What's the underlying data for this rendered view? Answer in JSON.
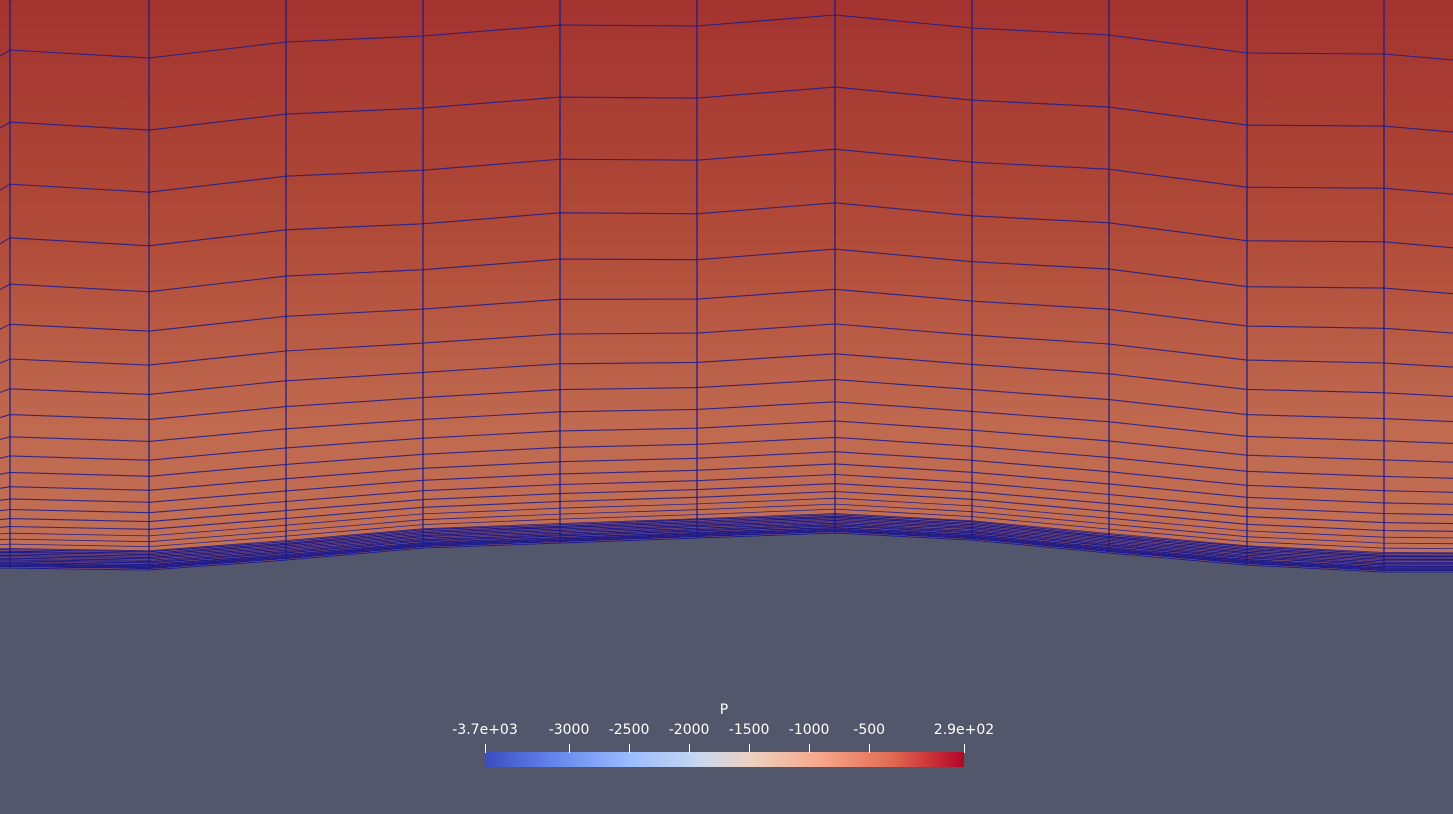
{
  "scene": {
    "background_color": "#52576b",
    "mesh_line_color": "#1a1a8c",
    "field_top_color": "#a33330",
    "field_bottom_color": "#c06a50"
  },
  "legend": {
    "title": "P",
    "min_label": "-3.7e+03",
    "max_label": "2.9e+02",
    "range": [
      -3700,
      290
    ],
    "ticks": [
      {
        "label": "-3.7e+03",
        "value": -3700
      },
      {
        "label": "-3000",
        "value": -3000
      },
      {
        "label": "-2500",
        "value": -2500
      },
      {
        "label": "-2000",
        "value": -2000
      },
      {
        "label": "-1500",
        "value": -1500
      },
      {
        "label": "-1000",
        "value": -1000
      },
      {
        "label": "-500",
        "value": -500
      },
      {
        "label": "2.9e+02",
        "value": 290
      }
    ],
    "colormap": "Cool to Warm"
  }
}
